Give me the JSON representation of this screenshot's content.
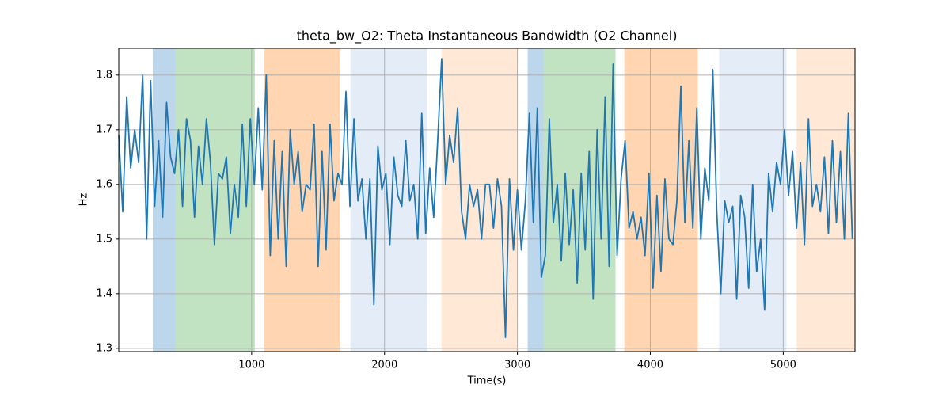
{
  "chart_data": {
    "type": "line",
    "title": "theta_bw_O2: Theta Instantaneous Bandwidth (O2 Channel)",
    "xlabel": "Time(s)",
    "ylabel": "Hz",
    "color": "#1f77b4",
    "grid": true,
    "xlim": [
      0,
      5540
    ],
    "ylim": [
      1.294,
      1.849
    ],
    "xticks": [
      1000,
      2000,
      3000,
      4000,
      5000
    ],
    "yticks": [
      1.3,
      1.4,
      1.5,
      1.6,
      1.7,
      1.8
    ],
    "spans": [
      {
        "start": 256,
        "end": 423,
        "color": "#bcd6eb"
      },
      {
        "start": 423,
        "end": 1024,
        "color": "#c2e3c2"
      },
      {
        "start": 1095,
        "end": 1667,
        "color": "#ffd6b1"
      },
      {
        "start": 1744,
        "end": 2321,
        "color": "#e4edf7"
      },
      {
        "start": 2429,
        "end": 3000,
        "color": "#ffe9d6"
      },
      {
        "start": 3077,
        "end": 3196,
        "color": "#bcd6eb"
      },
      {
        "start": 3196,
        "end": 3738,
        "color": "#c2e3c2"
      },
      {
        "start": 3804,
        "end": 4357,
        "color": "#ffd6b1"
      },
      {
        "start": 4518,
        "end": 5024,
        "color": "#e4edf7"
      },
      {
        "start": 5101,
        "end": 5540,
        "color": "#ffe9d6"
      }
    ],
    "x": [
      0,
      30,
      60,
      90,
      120,
      150,
      180,
      210,
      240,
      270,
      300,
      330,
      360,
      390,
      420,
      450,
      480,
      510,
      540,
      570,
      600,
      630,
      660,
      690,
      720,
      750,
      780,
      810,
      840,
      870,
      900,
      930,
      960,
      990,
      1020,
      1050,
      1080,
      1110,
      1140,
      1170,
      1200,
      1230,
      1260,
      1290,
      1320,
      1350,
      1380,
      1410,
      1440,
      1470,
      1500,
      1530,
      1560,
      1590,
      1620,
      1650,
      1680,
      1710,
      1740,
      1770,
      1800,
      1830,
      1860,
      1890,
      1920,
      1950,
      1980,
      2010,
      2040,
      2070,
      2100,
      2130,
      2160,
      2190,
      2220,
      2250,
      2280,
      2310,
      2340,
      2370,
      2400,
      2430,
      2460,
      2490,
      2520,
      2550,
      2580,
      2610,
      2640,
      2670,
      2700,
      2730,
      2760,
      2790,
      2820,
      2850,
      2880,
      2910,
      2940,
      2970,
      3000,
      3030,
      3060,
      3090,
      3120,
      3150,
      3180,
      3210,
      3240,
      3270,
      3300,
      3330,
      3360,
      3390,
      3420,
      3450,
      3480,
      3510,
      3540,
      3570,
      3600,
      3630,
      3660,
      3690,
      3720,
      3750,
      3780,
      3810,
      3840,
      3870,
      3900,
      3930,
      3960,
      3990,
      4020,
      4050,
      4080,
      4110,
      4140,
      4170,
      4200,
      4230,
      4260,
      4290,
      4320,
      4350,
      4380,
      4410,
      4440,
      4470,
      4500,
      4530,
      4560,
      4590,
      4620,
      4650,
      4680,
      4710,
      4740,
      4770,
      4800,
      4830,
      4860,
      4890,
      4920,
      4950,
      4980,
      5010,
      5040,
      5070,
      5100,
      5130,
      5160,
      5190,
      5220,
      5250,
      5280,
      5310,
      5340,
      5370,
      5400,
      5430,
      5460,
      5490,
      5520
    ],
    "values": [
      1.69,
      1.55,
      1.76,
      1.63,
      1.7,
      1.64,
      1.8,
      1.5,
      1.79,
      1.56,
      1.68,
      1.54,
      1.75,
      1.65,
      1.62,
      1.7,
      1.56,
      1.72,
      1.68,
      1.54,
      1.67,
      1.6,
      1.72,
      1.64,
      1.49,
      1.62,
      1.61,
      1.65,
      1.51,
      1.6,
      1.54,
      1.71,
      1.56,
      1.72,
      1.6,
      1.74,
      1.59,
      1.8,
      1.47,
      1.68,
      1.5,
      1.66,
      1.45,
      1.7,
      1.6,
      1.66,
      1.55,
      1.6,
      1.59,
      1.71,
      1.45,
      1.66,
      1.48,
      1.71,
      1.57,
      1.62,
      1.6,
      1.77,
      1.56,
      1.72,
      1.57,
      1.61,
      1.5,
      1.61,
      1.38,
      1.67,
      1.59,
      1.62,
      1.49,
      1.65,
      1.58,
      1.56,
      1.68,
      1.57,
      1.6,
      1.5,
      1.73,
      1.51,
      1.63,
      1.54,
      1.68,
      1.83,
      1.6,
      1.69,
      1.64,
      1.74,
      1.55,
      1.5,
      1.6,
      1.56,
      1.59,
      1.5,
      1.6,
      1.6,
      1.52,
      1.61,
      1.56,
      1.32,
      1.61,
      1.48,
      1.59,
      1.48,
      1.57,
      1.73,
      1.53,
      1.74,
      1.43,
      1.47,
      1.72,
      1.53,
      1.6,
      1.46,
      1.62,
      1.49,
      1.59,
      1.42,
      1.62,
      1.48,
      1.66,
      1.39,
      1.7,
      1.5,
      1.76,
      1.45,
      1.82,
      1.47,
      1.61,
      1.68,
      1.52,
      1.55,
      1.5,
      1.54,
      1.47,
      1.62,
      1.41,
      1.58,
      1.44,
      1.61,
      1.5,
      1.49,
      1.57,
      1.78,
      1.53,
      1.68,
      1.52,
      1.74,
      1.5,
      1.63,
      1.57,
      1.81,
      1.55,
      1.4,
      1.57,
      1.53,
      1.56,
      1.39,
      1.58,
      1.54,
      1.41,
      1.6,
      1.44,
      1.5,
      1.37,
      1.62,
      1.55,
      1.64,
      1.6,
      1.7,
      1.58,
      1.66,
      1.52,
      1.64,
      1.49,
      1.72,
      1.56,
      1.6,
      1.55,
      1.65,
      1.51,
      1.68,
      1.53,
      1.66,
      1.5,
      1.73,
      1.5
    ]
  }
}
